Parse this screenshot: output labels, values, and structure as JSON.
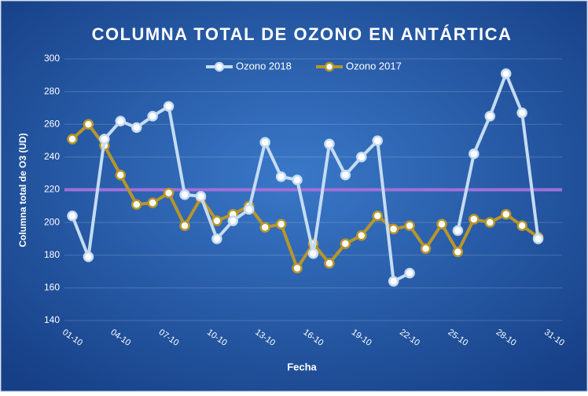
{
  "chart_data": {
    "type": "line",
    "title": "COLUMNA TOTAL DE OZONO EN ANTÁRTICA",
    "x_label": "Fecha",
    "y_label": "Columna total de O3 (UD)",
    "categories": [
      "01-10",
      null,
      null,
      "04-10",
      null,
      null,
      "07-10",
      null,
      null,
      "10-10",
      null,
      null,
      "13-10",
      null,
      null,
      "16-10",
      null,
      null,
      "19-10",
      null,
      null,
      "22-10",
      null,
      null,
      "25-10",
      null,
      null,
      "28-10",
      null,
      null,
      "31-10"
    ],
    "series": [
      {
        "name": "Ozono 2018",
        "color": "#c5dcf2",
        "values": [
          204,
          179,
          251,
          262,
          258,
          265,
          271,
          217,
          216,
          190,
          201,
          208,
          249,
          228,
          226,
          181,
          248,
          229,
          240,
          250,
          164,
          169,
          null,
          null,
          195,
          242,
          265,
          291,
          267,
          190,
          null
        ]
      },
      {
        "name": "Ozono 2017",
        "color": "#b8962a",
        "values": [
          251,
          260,
          247,
          229,
          211,
          212,
          218,
          198,
          215,
          201,
          205,
          210,
          197,
          199,
          172,
          187,
          175,
          187,
          192,
          204,
          196,
          198,
          184,
          199,
          182,
          202,
          200,
          205,
          198,
          191,
          null
        ]
      }
    ],
    "reference_line": {
      "value": 220,
      "color": "#a070d8"
    },
    "ylim": [
      140,
      300
    ],
    "yticks": [
      140,
      160,
      180,
      200,
      220,
      240,
      260,
      280,
      300
    ],
    "grid": true,
    "legend": "top"
  }
}
